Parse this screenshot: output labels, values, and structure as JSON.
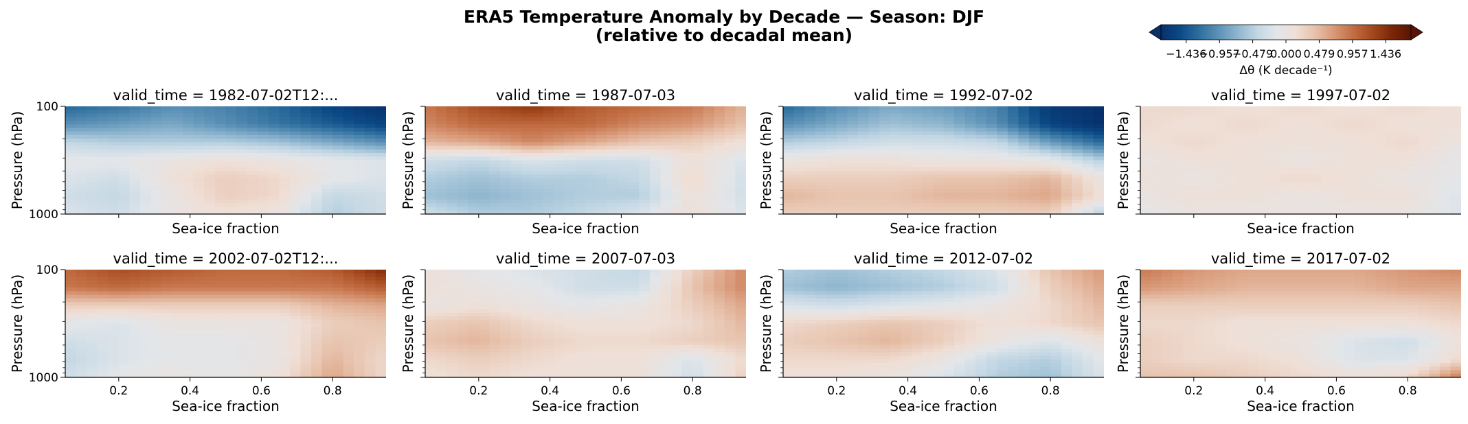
{
  "figure": {
    "title": "ERA5 Temperature Anomaly by Decade — Season: DJF",
    "subtitle": "(relative to decadal mean)"
  },
  "colorbar": {
    "label": "Δθ (K decade⁻¹)",
    "ticks": [
      "−1.436",
      "−0.957",
      "−0.479",
      "0.000",
      "0.479",
      "0.957",
      "1.436"
    ],
    "range": [
      -1.8,
      1.8
    ],
    "colormap": "RdBu_r-like (dark blue → white → dark brown)",
    "extend": "both",
    "colors": [
      "#08306b",
      "#0b4a86",
      "#2f6f9e",
      "#5d92b7",
      "#8fb6cf",
      "#c2d7e4",
      "#e2e6ea",
      "#efdfd6",
      "#e7c2ac",
      "#d89877",
      "#c26d43",
      "#a4481d",
      "#7a2708",
      "#5a1405"
    ]
  },
  "chart_data": [
    {
      "type": "heatmap",
      "panel_title": "valid_time = 1982-07-02T12:...",
      "xlabel": "Sea-ice fraction",
      "ylabel": "Pressure (hPa)",
      "xlim": [
        0.05,
        0.95
      ],
      "ylim": [
        1000,
        100
      ],
      "yticks": [
        "100",
        "1000"
      ],
      "xticks": [],
      "x": [
        0.05,
        0.2,
        0.35,
        0.5,
        0.65,
        0.8,
        0.95
      ],
      "y": [
        100,
        250,
        400,
        550,
        700,
        850,
        1000
      ],
      "values": [
        [
          -1.3,
          -1.2,
          -1.0,
          -1.1,
          -1.3,
          -1.6,
          -1.8
        ],
        [
          -1.0,
          -0.9,
          -0.8,
          -1.0,
          -1.2,
          -1.4,
          -1.6
        ],
        [
          -0.4,
          -0.5,
          -0.5,
          -0.5,
          -0.6,
          -0.8,
          -1.0
        ],
        [
          -0.1,
          -0.1,
          0.0,
          0.1,
          0.0,
          -0.1,
          -0.2
        ],
        [
          -0.2,
          -0.3,
          0.1,
          0.3,
          0.2,
          -0.1,
          -0.2
        ],
        [
          -0.3,
          -0.4,
          0.0,
          0.3,
          0.2,
          -0.4,
          -0.3
        ],
        [
          -0.2,
          -0.3,
          0.0,
          0.1,
          0.0,
          -0.5,
          -0.3
        ]
      ]
    },
    {
      "type": "heatmap",
      "panel_title": "valid_time = 1987-07-03",
      "xlabel": "Sea-ice fraction",
      "ylabel": "Pressure (hPa)",
      "xlim": [
        0.05,
        0.95
      ],
      "ylim": [
        1000,
        100
      ],
      "yticks": [],
      "xticks": [],
      "x": [
        0.05,
        0.2,
        0.35,
        0.5,
        0.65,
        0.8,
        0.95
      ],
      "y": [
        100,
        250,
        400,
        550,
        700,
        850,
        1000
      ],
      "values": [
        [
          0.9,
          1.2,
          1.4,
          1.1,
          1.0,
          0.9,
          0.5
        ],
        [
          0.8,
          1.0,
          1.0,
          1.0,
          0.8,
          0.7,
          0.4
        ],
        [
          0.5,
          0.6,
          0.8,
          0.6,
          0.4,
          0.3,
          0.1
        ],
        [
          -0.3,
          -0.4,
          -0.2,
          -0.3,
          -0.3,
          0.1,
          -0.2
        ],
        [
          -0.5,
          -0.6,
          -0.5,
          -0.5,
          -0.4,
          0.2,
          -0.3
        ],
        [
          -0.6,
          -0.7,
          -0.6,
          -0.5,
          -0.5,
          0.1,
          -0.3
        ],
        [
          -0.3,
          -0.5,
          -0.5,
          -0.4,
          -0.2,
          0.1,
          -0.2
        ]
      ]
    },
    {
      "type": "heatmap",
      "panel_title": "valid_time = 1992-07-02",
      "xlabel": "Sea-ice fraction",
      "ylabel": "Pressure (hPa)",
      "xlim": [
        0.05,
        0.95
      ],
      "ylim": [
        1000,
        100
      ],
      "yticks": [],
      "xticks": [],
      "x": [
        0.05,
        0.2,
        0.35,
        0.5,
        0.65,
        0.8,
        0.95
      ],
      "y": [
        100,
        250,
        400,
        550,
        700,
        850,
        1000
      ],
      "values": [
        [
          -1.3,
          -1.0,
          -0.8,
          -0.9,
          -1.1,
          -1.7,
          -1.8
        ],
        [
          -1.0,
          -0.8,
          -0.6,
          -0.7,
          -1.0,
          -1.6,
          -1.8
        ],
        [
          -0.5,
          -0.4,
          -0.3,
          -0.3,
          -0.4,
          -0.9,
          -1.3
        ],
        [
          0.0,
          0.1,
          0.1,
          0.0,
          0.0,
          -0.1,
          -0.5
        ],
        [
          0.3,
          0.3,
          0.3,
          0.4,
          0.4,
          0.5,
          0.0
        ],
        [
          0.5,
          0.4,
          0.4,
          0.5,
          0.5,
          0.6,
          0.1
        ],
        [
          0.3,
          0.3,
          0.3,
          0.3,
          0.3,
          0.3,
          -0.5
        ]
      ]
    },
    {
      "type": "heatmap",
      "panel_title": "valid_time = 1997-07-02",
      "xlabel": "Sea-ice fraction",
      "ylabel": "Pressure (hPa)",
      "xlim": [
        0.05,
        0.95
      ],
      "ylim": [
        1000,
        100
      ],
      "yticks": [],
      "xticks": [],
      "x": [
        0.05,
        0.2,
        0.35,
        0.5,
        0.65,
        0.8,
        0.95
      ],
      "y": [
        100,
        250,
        400,
        550,
        700,
        850,
        1000
      ],
      "values": [
        [
          0.2,
          0.2,
          0.1,
          0.2,
          0.1,
          0.2,
          0.1
        ],
        [
          0.2,
          0.1,
          0.2,
          0.1,
          0.2,
          0.1,
          0.1
        ],
        [
          0.1,
          0.2,
          0.1,
          0.1,
          0.1,
          0.2,
          0.0
        ],
        [
          0.0,
          0.1,
          0.1,
          0.0,
          0.1,
          0.1,
          -0.1
        ],
        [
          0.1,
          0.0,
          0.1,
          0.2,
          0.1,
          0.0,
          -0.1
        ],
        [
          0.0,
          0.1,
          0.1,
          0.0,
          0.1,
          0.1,
          -0.2
        ],
        [
          -0.1,
          0.0,
          0.0,
          0.0,
          0.0,
          0.0,
          -0.2
        ]
      ]
    },
    {
      "type": "heatmap",
      "panel_title": "valid_time = 2002-07-02T12:...",
      "xlabel": "Sea-ice fraction",
      "ylabel": "Pressure (hPa)",
      "xlim": [
        0.05,
        0.95
      ],
      "ylim": [
        1000,
        100
      ],
      "yticks": [
        "100",
        "1000"
      ],
      "xticks": [
        "0.2",
        "0.4",
        "0.6",
        "0.8"
      ],
      "x": [
        0.05,
        0.2,
        0.35,
        0.5,
        0.65,
        0.8,
        0.95
      ],
      "y": [
        100,
        250,
        400,
        550,
        700,
        850,
        1000
      ],
      "values": [
        [
          1.0,
          1.2,
          1.1,
          1.0,
          1.0,
          1.1,
          1.5
        ],
        [
          0.9,
          1.0,
          0.9,
          0.9,
          0.9,
          0.9,
          1.1
        ],
        [
          0.3,
          0.3,
          0.3,
          0.3,
          0.3,
          0.5,
          0.6
        ],
        [
          -0.1,
          -0.2,
          0.0,
          0.0,
          0.0,
          0.3,
          0.4
        ],
        [
          -0.3,
          -0.2,
          -0.1,
          -0.1,
          0.0,
          0.4,
          0.3
        ],
        [
          -0.4,
          -0.2,
          -0.1,
          -0.1,
          0.0,
          0.5,
          0.2
        ],
        [
          -0.3,
          -0.1,
          0.0,
          -0.1,
          0.1,
          0.6,
          0.2
        ]
      ]
    },
    {
      "type": "heatmap",
      "panel_title": "valid_time = 2007-07-03",
      "xlabel": "Sea-ice fraction",
      "ylabel": "Pressure (hPa)",
      "xlim": [
        0.05,
        0.95
      ],
      "ylim": [
        1000,
        100
      ],
      "yticks": [],
      "xticks": [
        "0.2",
        "0.4",
        "0.6",
        "0.8"
      ],
      "x": [
        0.05,
        0.2,
        0.35,
        0.5,
        0.65,
        0.8,
        0.95
      ],
      "y": [
        100,
        250,
        400,
        550,
        700,
        850,
        1000
      ],
      "values": [
        [
          0.1,
          -0.1,
          -0.2,
          -0.3,
          -0.4,
          0.3,
          0.8
        ],
        [
          0.1,
          0.0,
          -0.1,
          -0.3,
          -0.3,
          0.4,
          0.8
        ],
        [
          0.0,
          0.1,
          0.0,
          -0.1,
          0.0,
          0.3,
          0.6
        ],
        [
          0.3,
          0.4,
          0.2,
          0.1,
          0.1,
          0.2,
          0.5
        ],
        [
          0.4,
          0.5,
          0.3,
          0.2,
          0.2,
          0.3,
          0.4
        ],
        [
          0.2,
          0.3,
          0.2,
          0.1,
          0.1,
          -0.2,
          0.2
        ],
        [
          0.1,
          0.2,
          0.1,
          0.1,
          0.1,
          -0.3,
          0.3
        ]
      ]
    },
    {
      "type": "heatmap",
      "panel_title": "valid_time = 2012-07-02",
      "xlabel": "Sea-ice fraction",
      "ylabel": "Pressure (hPa)",
      "xlim": [
        0.05,
        0.95
      ],
      "ylim": [
        1000,
        100
      ],
      "yticks": [],
      "xticks": [
        "0.2",
        "0.4",
        "0.6",
        "0.8"
      ],
      "x": [
        0.05,
        0.2,
        0.35,
        0.5,
        0.65,
        0.8,
        0.95
      ],
      "y": [
        100,
        250,
        400,
        550,
        700,
        850,
        1000
      ],
      "values": [
        [
          -0.5,
          -0.6,
          -0.5,
          -0.4,
          -0.2,
          0.4,
          0.7
        ],
        [
          -0.6,
          -0.7,
          -0.6,
          -0.5,
          -0.3,
          0.3,
          0.6
        ],
        [
          -0.2,
          -0.3,
          -0.2,
          -0.1,
          0.0,
          0.2,
          0.5
        ],
        [
          0.2,
          0.3,
          0.4,
          0.3,
          0.1,
          0.2,
          0.4
        ],
        [
          0.3,
          0.4,
          0.5,
          0.3,
          0.0,
          -0.2,
          0.1
        ],
        [
          0.2,
          0.2,
          0.2,
          0.0,
          -0.4,
          -0.5,
          -0.1
        ],
        [
          0.1,
          0.1,
          0.0,
          -0.2,
          -0.5,
          -0.6,
          -0.2
        ]
      ]
    },
    {
      "type": "heatmap",
      "panel_title": "valid_time = 2017-07-02",
      "xlabel": "Sea-ice fraction",
      "ylabel": "Pressure (hPa)",
      "xlim": [
        0.05,
        0.95
      ],
      "ylim": [
        1000,
        100
      ],
      "yticks": [],
      "xticks": [
        "0.2",
        "0.4",
        "0.6",
        "0.8"
      ],
      "x": [
        0.05,
        0.2,
        0.35,
        0.5,
        0.65,
        0.8,
        0.95
      ],
      "y": [
        100,
        250,
        400,
        550,
        700,
        850,
        1000
      ],
      "values": [
        [
          0.9,
          0.7,
          0.6,
          0.6,
          0.6,
          0.7,
          0.8
        ],
        [
          0.7,
          0.6,
          0.5,
          0.5,
          0.5,
          0.6,
          0.6
        ],
        [
          0.3,
          0.3,
          0.3,
          0.3,
          0.3,
          0.3,
          0.4
        ],
        [
          0.2,
          0.2,
          0.1,
          0.1,
          0.1,
          0.1,
          0.2
        ],
        [
          0.3,
          0.2,
          0.1,
          0.0,
          -0.2,
          -0.3,
          0.1
        ],
        [
          0.3,
          0.2,
          0.2,
          0.1,
          -0.2,
          -0.2,
          0.2
        ],
        [
          0.4,
          0.4,
          0.3,
          0.2,
          0.1,
          0.2,
          0.9
        ]
      ]
    }
  ]
}
